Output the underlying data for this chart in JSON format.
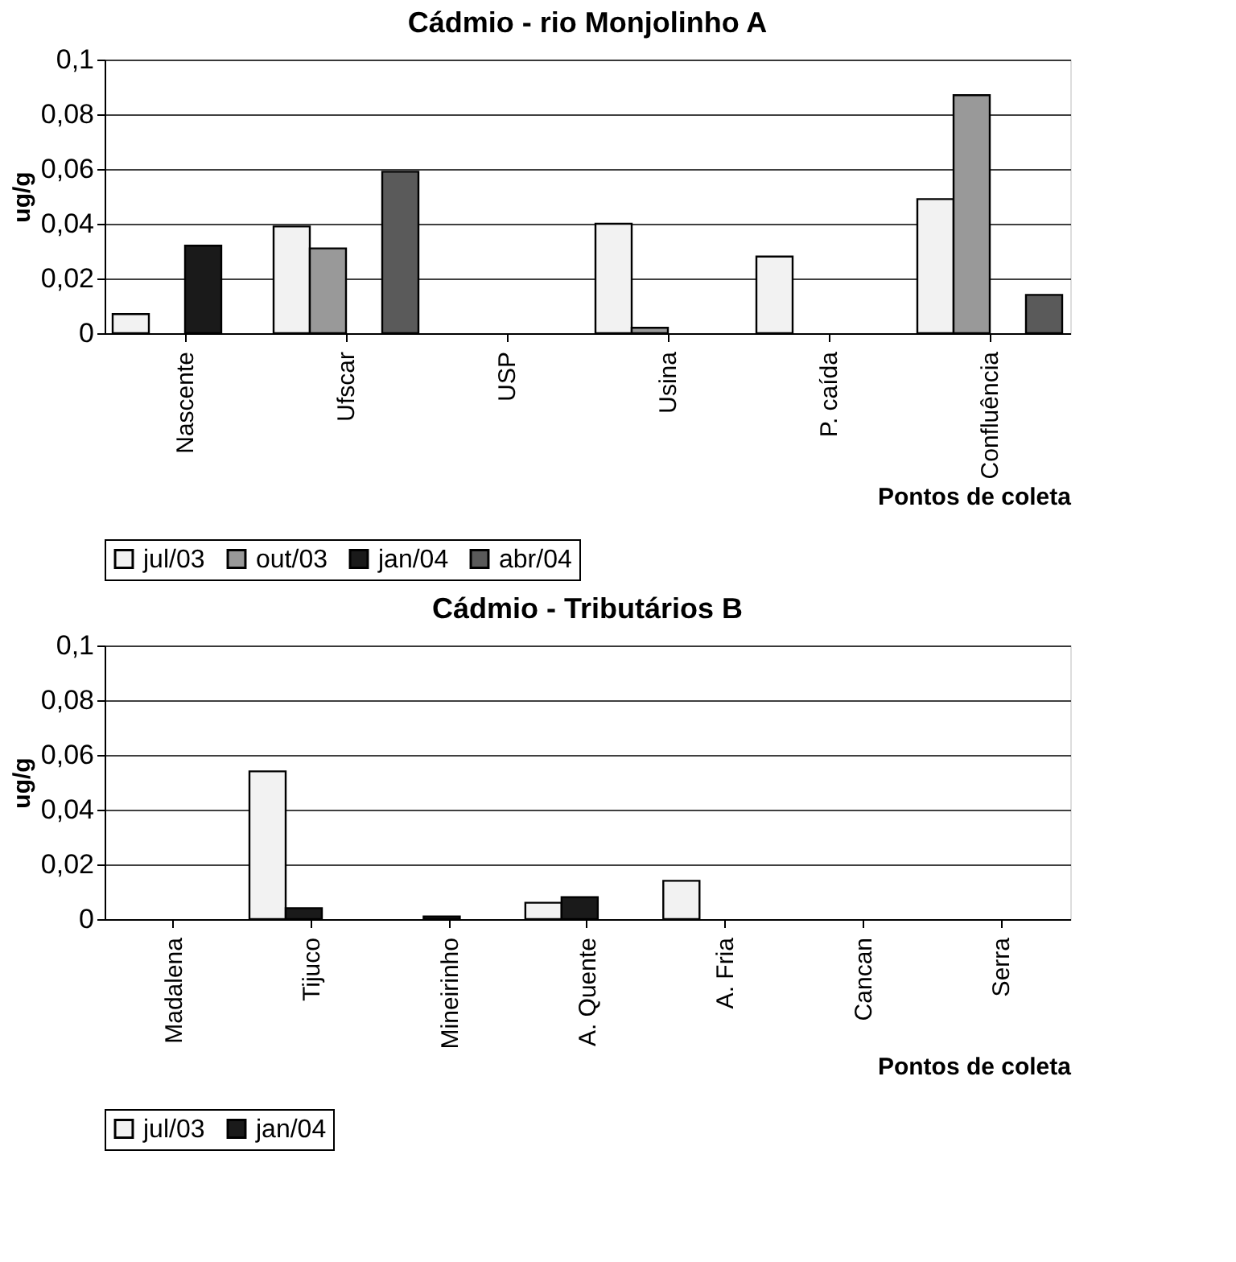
{
  "chart_data": [
    {
      "type": "bar",
      "title": "Cádmio - rio Monjolinho          A",
      "xlabel": "Pontos de coleta",
      "ylabel": "ug/g",
      "categories": [
        "Nascente",
        "Ufscar",
        "USP",
        "Usina",
        "P. caída",
        "Confluência"
      ],
      "series": [
        {
          "name": "jul/03",
          "color": "#f2f2f2",
          "values": [
            0.007,
            0.039,
            null,
            0.04,
            0.028,
            0.049
          ]
        },
        {
          "name": "out/03",
          "color": "#999999",
          "values": [
            null,
            0.031,
            null,
            0.002,
            null,
            0.087
          ]
        },
        {
          "name": "jan/04",
          "color": "#1a1a1a",
          "values": [
            0.032,
            null,
            null,
            null,
            null,
            null
          ]
        },
        {
          "name": "abr/04",
          "color": "#5a5a5a",
          "values": [
            null,
            0.059,
            null,
            null,
            null,
            0.014
          ]
        }
      ],
      "ylim": [
        0,
        0.1
      ],
      "yticks": [
        {
          "value": 0,
          "label": "0"
        },
        {
          "value": 0.02,
          "label": "0,02"
        },
        {
          "value": 0.04,
          "label": "0,04"
        },
        {
          "value": 0.06,
          "label": "0,06"
        },
        {
          "value": 0.08,
          "label": "0,08"
        },
        {
          "value": 0.1,
          "label": "0,1"
        }
      ],
      "grid": "y",
      "legend": "bottom"
    },
    {
      "type": "bar",
      "title": "Cádmio - Tributários          B",
      "xlabel": "Pontos de coleta",
      "ylabel": "ug/g",
      "categories": [
        "Madalena",
        "Tijuco",
        "Mineirinho",
        "A. Quente",
        "A. Fria",
        "Cancan",
        "Serra"
      ],
      "series": [
        {
          "name": "jul/03",
          "color": "#f2f2f2",
          "values": [
            null,
            0.054,
            null,
            0.006,
            0.014,
            null,
            null
          ]
        },
        {
          "name": "jan/04",
          "color": "#1a1a1a",
          "values": [
            null,
            0.004,
            0.001,
            0.008,
            null,
            null,
            null
          ]
        }
      ],
      "ylim": [
        0,
        0.1
      ],
      "yticks": [
        {
          "value": 0,
          "label": "0"
        },
        {
          "value": 0.02,
          "label": "0,02"
        },
        {
          "value": 0.04,
          "label": "0,04"
        },
        {
          "value": 0.06,
          "label": "0,06"
        },
        {
          "value": 0.08,
          "label": "0,08"
        },
        {
          "value": 0.1,
          "label": "0,1"
        }
      ],
      "grid": "y",
      "legend": "bottom"
    }
  ]
}
